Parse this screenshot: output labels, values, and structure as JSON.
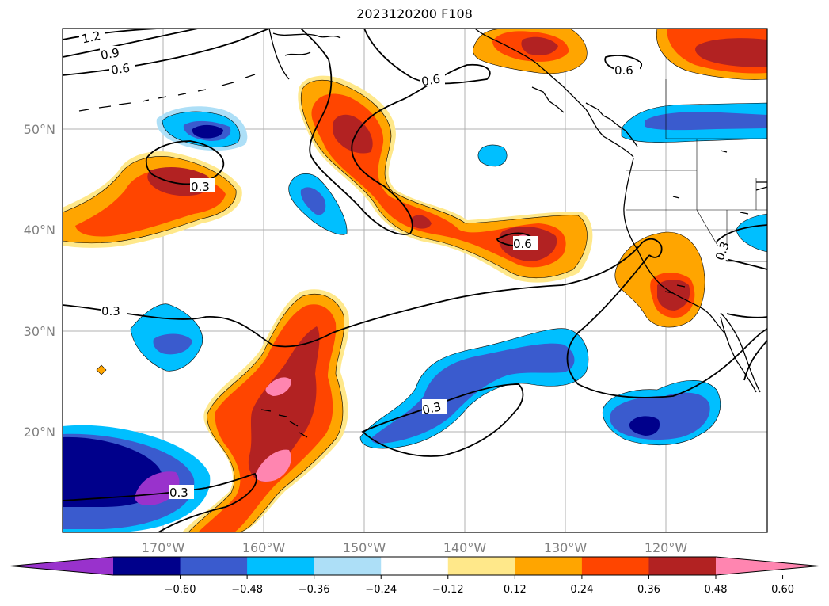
{
  "title": "2023120200 F108",
  "colors": {
    "levels": [
      "#9932CC",
      "#00008B",
      "#3A5BCE",
      "#00BFFF",
      "#ADDFF7",
      "#FFFFFF",
      "#FFE88A",
      "#FFA500",
      "#FF4500",
      "#B22222",
      "#FF85B0"
    ],
    "coast": "#000000",
    "grid": "#b0b0b0"
  },
  "chart_data": {
    "type": "map",
    "lon_ticks": [
      "170°W",
      "160°W",
      "150°W",
      "140°W",
      "130°W",
      "120°W"
    ],
    "lat_ticks": [
      "50°N",
      "40°N",
      "30°N",
      "20°N"
    ],
    "lon_range": [
      -180,
      -110
    ],
    "lat_range": [
      10,
      60
    ],
    "colorbar": {
      "ticks": [
        "−0.60",
        "−0.48",
        "−0.36",
        "−0.24",
        "−0.12",
        "0.12",
        "0.24",
        "0.36",
        "0.48",
        "0.60"
      ],
      "extend": "both"
    },
    "contour_labels": [
      "1.2",
      "0.9",
      "0.6",
      "0.6",
      "0.6",
      "0.3",
      "0.3",
      "0.6",
      "0.3",
      "0.3",
      "0.3"
    ]
  }
}
